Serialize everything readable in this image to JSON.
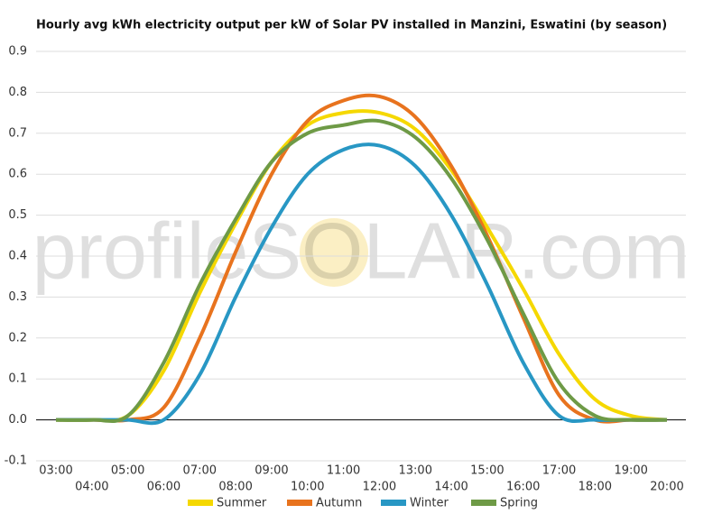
{
  "chart_data": {
    "type": "line",
    "title": "Hourly avg kWh electricity output per kW of Solar PV installed in Manzini, Eswatini (by season)",
    "watermark": "profileSOLAR.com",
    "categories": [
      "03:00",
      "04:00",
      "05:00",
      "06:00",
      "07:00",
      "08:00",
      "09:00",
      "10:00",
      "11:00",
      "12:00",
      "13:00",
      "14:00",
      "15:00",
      "16:00",
      "17:00",
      "18:00",
      "19:00",
      "20:00"
    ],
    "series": [
      {
        "name": "Summer",
        "color": "#f5d800",
        "values": [
          0,
          0,
          0.01,
          0.12,
          0.31,
          0.48,
          0.63,
          0.72,
          0.75,
          0.75,
          0.71,
          0.61,
          0.47,
          0.32,
          0.16,
          0.05,
          0.01,
          0
        ]
      },
      {
        "name": "Autumn",
        "color": "#e8731e",
        "values": [
          0,
          0,
          0,
          0.03,
          0.2,
          0.41,
          0.6,
          0.73,
          0.78,
          0.79,
          0.74,
          0.62,
          0.45,
          0.25,
          0.06,
          0,
          0,
          0
        ]
      },
      {
        "name": "Winter",
        "color": "#2897c4",
        "values": [
          0,
          0,
          0,
          0,
          0.11,
          0.3,
          0.47,
          0.6,
          0.66,
          0.67,
          0.62,
          0.5,
          0.33,
          0.14,
          0.01,
          0,
          0,
          0
        ]
      },
      {
        "name": "Spring",
        "color": "#6e9a46",
        "values": [
          0,
          0,
          0.01,
          0.14,
          0.33,
          0.49,
          0.63,
          0.7,
          0.72,
          0.73,
          0.69,
          0.59,
          0.44,
          0.26,
          0.09,
          0.01,
          0,
          0
        ]
      }
    ],
    "ylim": [
      -0.1,
      0.9
    ],
    "yticks": [
      -0.1,
      {
        "value": 0,
        "label": "0.0"
      },
      0.1,
      0.2,
      0.3,
      0.4,
      0.5,
      0.6,
      0.7,
      0.8,
      0.9
    ],
    "grid": true,
    "legend": "bottom"
  }
}
